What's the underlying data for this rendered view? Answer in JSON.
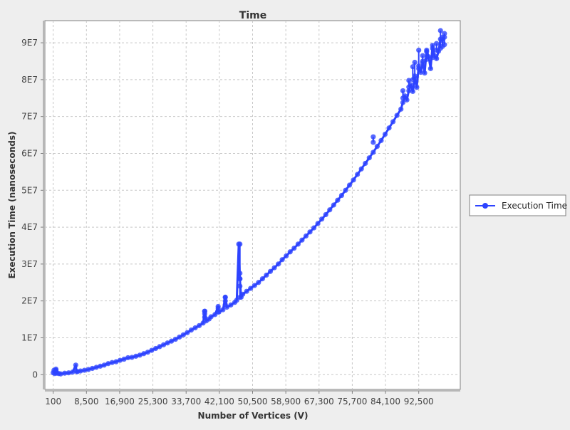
{
  "chart_data": {
    "type": "line",
    "title": "Time",
    "xlabel": "Number of Vertices (V)",
    "ylabel": "Execution Time (nanoseconds)",
    "xlim": [
      -2000,
      103000
    ],
    "ylim": [
      -4000000,
      96000000
    ],
    "x_ticks": [
      100,
      8500,
      16900,
      25300,
      33700,
      42100,
      50500,
      58900,
      67300,
      75700,
      84100,
      92500
    ],
    "x_tick_labels": [
      "100",
      "8,500",
      "16,900",
      "25,300",
      "33,700",
      "42,100",
      "50,500",
      "58,900",
      "67,300",
      "75,700",
      "84,100",
      "92,500"
    ],
    "y_ticks": [
      0,
      10000000,
      20000000,
      30000000,
      40000000,
      50000000,
      60000000,
      70000000,
      80000000,
      90000000
    ],
    "y_tick_labels": [
      "0",
      "1E7",
      "2E7",
      "3E7",
      "4E7",
      "5E7",
      "6E7",
      "7E7",
      "8E7",
      "9E7"
    ],
    "grid": true,
    "legend_position": "right",
    "series": [
      {
        "name": "Execution Time",
        "color": "#2d43ff",
        "x": [
          100,
          300,
          500,
          800,
          1000,
          1500,
          2000,
          3000,
          4000,
          5000,
          5800,
          6000,
          6200,
          7000,
          8000,
          9000,
          10000,
          11000,
          12000,
          13000,
          14000,
          15000,
          16000,
          17000,
          18000,
          19000,
          20000,
          21000,
          22000,
          23000,
          24000,
          25000,
          26000,
          27000,
          28000,
          29000,
          30000,
          31000,
          32000,
          33000,
          34000,
          35000,
          36000,
          37000,
          38000,
          38400,
          38800,
          39500,
          40000,
          41000,
          41800,
          42000,
          43000,
          43600,
          44000,
          45000,
          46000,
          46500,
          47000,
          47300,
          47600,
          48000,
          49000,
          50000,
          51000,
          52000,
          53000,
          54000,
          55000,
          56000,
          57000,
          58000,
          59000,
          60000,
          61000,
          62000,
          63000,
          64000,
          65000,
          66000,
          67000,
          68000,
          69000,
          70000,
          71000,
          72000,
          73000,
          74000,
          75000,
          76000,
          77000,
          78000,
          79000,
          80000,
          81000,
          82000,
          83000,
          84000,
          85000,
          86000,
          87000,
          88000,
          88500,
          89000,
          89500,
          90000,
          90500,
          91000,
          91500,
          92000,
          92500,
          93000,
          93500,
          94000,
          94500,
          95000,
          95500,
          96000,
          96500,
          97000,
          97500,
          98000,
          98500,
          99000
        ],
        "values": [
          500000,
          1200000,
          300000,
          1500000,
          400000,
          300000,
          200000,
          400000,
          500000,
          700000,
          2600000,
          900000,
          800000,
          1000000,
          1200000,
          1400000,
          1700000,
          2000000,
          2300000,
          2600000,
          3000000,
          3300000,
          3500000,
          3900000,
          4200000,
          4600000,
          4700000,
          5000000,
          5300000,
          5700000,
          6100000,
          6600000,
          7100000,
          7600000,
          8100000,
          8600000,
          9100000,
          9600000,
          10200000,
          10800000,
          11400000,
          12100000,
          12700000,
          13300000,
          14000000,
          17200000,
          14600000,
          15100000,
          15700000,
          16300000,
          18500000,
          17000000,
          17600000,
          21000000,
          18300000,
          18900000,
          19600000,
          20200000,
          35400000,
          26000000,
          21000000,
          21800000,
          22600000,
          23400000,
          24200000,
          25000000,
          26000000,
          27000000,
          28000000,
          29000000,
          30000000,
          31200000,
          32200000,
          33300000,
          34300000,
          35400000,
          36500000,
          37600000,
          38700000,
          39800000,
          41000000,
          42200000,
          43400000,
          44700000,
          46000000,
          47300000,
          48600000,
          50000000,
          51400000,
          52800000,
          54300000,
          55800000,
          57300000,
          58800000,
          60300000,
          61900000,
          63500000,
          65200000,
          66900000,
          68600000,
          70300000,
          72000000,
          73800000,
          75600000,
          74500000,
          77000000,
          78600000,
          76800000,
          80500000,
          77900000,
          83700000,
          82000000,
          84600000,
          81800000,
          88000000,
          86200000,
          83000000,
          89300000,
          86500000,
          85700000,
          87700000,
          91000000,
          90500000,
          91500000
        ],
        "spikes": [
          {
            "x": 800,
            "values": [
              600000,
              900000,
              1200000
            ]
          },
          {
            "x": 38400,
            "values": [
              15600000,
              16500000,
              17200000
            ]
          },
          {
            "x": 41800,
            "values": [
              17000000,
              18000000
            ]
          },
          {
            "x": 43600,
            "values": [
              19000000,
              20000000,
              21000000
            ]
          },
          {
            "x": 47300,
            "values": [
              21000000,
              24000000,
              26000000,
              27500000,
              35400000
            ]
          },
          {
            "x": 81000,
            "values": [
              63000000,
              64500000
            ]
          },
          {
            "x": 88500,
            "values": [
              75000000,
              77000000
            ]
          },
          {
            "x": 90000,
            "values": [
              78000000,
              79800000
            ]
          },
          {
            "x": 91000,
            "values": [
              80000000,
              83500000
            ]
          },
          {
            "x": 91500,
            "values": [
              81000000,
              84700000
            ]
          },
          {
            "x": 92500,
            "values": [
              83000000,
              88000000
            ]
          },
          {
            "x": 93500,
            "values": [
              85000000,
              86500000
            ]
          },
          {
            "x": 94500,
            "values": [
              85500000,
              87600000
            ]
          },
          {
            "x": 96000,
            "values": [
              86000000,
              88500000
            ]
          },
          {
            "x": 97000,
            "values": [
              88000000,
              89800000
            ]
          },
          {
            "x": 98000,
            "values": [
              88500000,
              93300000
            ]
          },
          {
            "x": 98500,
            "values": [
              89000000,
              91500000
            ]
          },
          {
            "x": 99000,
            "values": [
              89500000,
              92500000
            ]
          }
        ]
      }
    ]
  }
}
